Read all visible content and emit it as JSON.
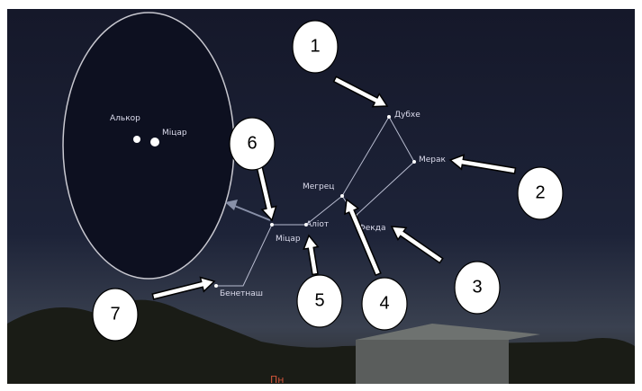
{
  "stars": [
    {
      "label": "Дубхе"
    },
    {
      "label": "Мерак"
    },
    {
      "label": "Фекда"
    },
    {
      "label": "Мегрец"
    },
    {
      "label": "Аліот"
    },
    {
      "label": "Міцар"
    },
    {
      "label": "Бенетнаш"
    }
  ],
  "inset": {
    "stars": [
      {
        "label": "Алькор"
      },
      {
        "label": "Міцар"
      }
    ]
  },
  "callouts": [
    "1",
    "2",
    "3",
    "4",
    "5",
    "6",
    "7"
  ],
  "direction": "Пн"
}
